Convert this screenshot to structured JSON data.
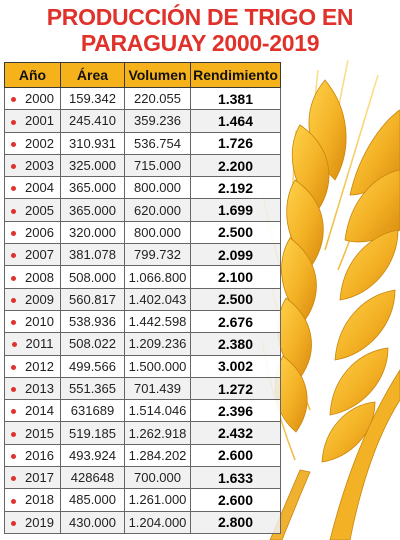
{
  "title": {
    "line1": "PRODUCCIÓN DE TRIGO EN",
    "line2": "PARAGUAY 2000-2019"
  },
  "colors": {
    "title": "#e0312b",
    "header_bg": "#f6b21a",
    "bullet": "#e0312b",
    "wheat": "#f3b125"
  },
  "table": {
    "headers": [
      "Año",
      "Área",
      "Volumen",
      "Rendimiento"
    ],
    "rows": [
      [
        "2000",
        "159.342",
        "220.055",
        "1.381"
      ],
      [
        "2001",
        "245.410",
        "359.236",
        "1.464"
      ],
      [
        "2002",
        "310.931",
        "536.754",
        "1.726"
      ],
      [
        "2003",
        "325.000",
        "715.000",
        "2.200"
      ],
      [
        "2004",
        "365.000",
        "800.000",
        "2.192"
      ],
      [
        "2005",
        "365.000",
        "620.000",
        "1.699"
      ],
      [
        "2006",
        "320.000",
        "800.000",
        "2.500"
      ],
      [
        "2007",
        "381.078",
        "799.732",
        "2.099"
      ],
      [
        "2008",
        "508.000",
        "1.066.800",
        "2.100"
      ],
      [
        "2009",
        "560.817",
        "1.402.043",
        "2.500"
      ],
      [
        "2010",
        "538.936",
        "1.442.598",
        "2.676"
      ],
      [
        "2011",
        "508.022",
        "1.209.236",
        "2.380"
      ],
      [
        "2012",
        "499.566",
        "1.500.000",
        "3.002"
      ],
      [
        "2013",
        "551.365",
        "701.439",
        "1.272"
      ],
      [
        "2014",
        "631689",
        "1.514.046",
        "2.396"
      ],
      [
        "2015",
        "519.185",
        "1.262.918",
        "2.432"
      ],
      [
        "2016",
        "493.924",
        "1.284.202",
        "2.600"
      ],
      [
        "2017",
        "428648",
        "700.000",
        "1.633"
      ],
      [
        "2018",
        "485.000",
        "1.261.000",
        "2.600"
      ],
      [
        "2019",
        "430.000",
        "1.204.000",
        "2.800"
      ]
    ]
  }
}
